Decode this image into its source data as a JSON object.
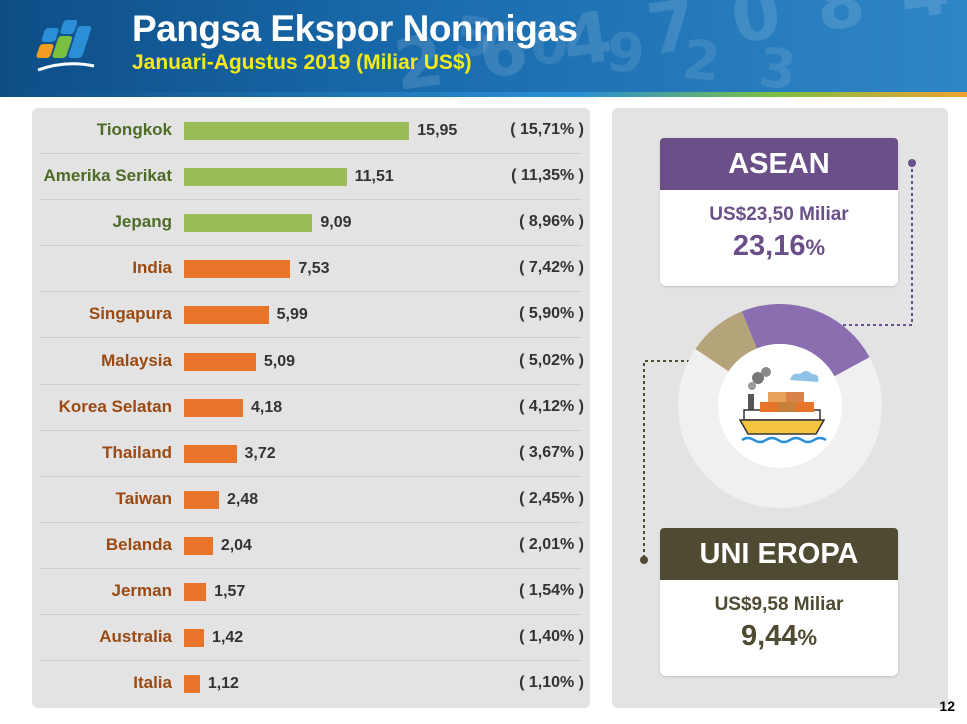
{
  "header": {
    "title": "Pangsa Ekspor Nonmigas",
    "subtitle": "Januari-Agustus 2019 (Miliar US$)"
  },
  "chart_data": {
    "type": "bar",
    "orientation": "horizontal",
    "categories": [
      "Tiongkok",
      "Amerika Serikat",
      "Jepang",
      "India",
      "Singapura",
      "Malaysia",
      "Korea Selatan",
      "Thailand",
      "Taiwan",
      "Belanda",
      "Jerman",
      "Australia",
      "Italia"
    ],
    "values": [
      15.95,
      11.51,
      9.09,
      7.53,
      5.99,
      5.09,
      4.18,
      3.72,
      2.48,
      2.04,
      1.57,
      1.42,
      1.12
    ],
    "value_labels": [
      "15,95",
      "11,51",
      "9,09",
      "7,53",
      "5,99",
      "5,09",
      "4,18",
      "3,72",
      "2,48",
      "2,04",
      "1,57",
      "1,42",
      "1,12"
    ],
    "share_labels": [
      "( 15,71% )",
      "( 11,35% )",
      "( 8,96% )",
      "( 7,42% )",
      "( 5,90% )",
      "( 5,02% )",
      "( 4,12% )",
      "( 3,67% )",
      "( 2,45% )",
      "( 2,01% )",
      "( 1,54% )",
      "( 1,40% )",
      "( 1,10% )"
    ],
    "bar_colors": [
      "#9cbb59",
      "#9cbb59",
      "#9cbb59",
      "#e8742a",
      "#e8742a",
      "#e8742a",
      "#e8742a",
      "#e8742a",
      "#e8742a",
      "#e8742a",
      "#e8742a",
      "#e8742a",
      "#e8742a"
    ],
    "label_colors": [
      "#4e6b27",
      "#4e6b27",
      "#4e6b27",
      "#9a4a12",
      "#9a4a12",
      "#9a4a12",
      "#9a4a12",
      "#9a4a12",
      "#9a4a12",
      "#9a4a12",
      "#9a4a12",
      "#9a4a12",
      "#9a4a12"
    ],
    "xlim": [
      0,
      16
    ]
  },
  "regions": {
    "asean": {
      "title": "ASEAN",
      "amount": "US$23,50 Miliar",
      "share": "23,16",
      "percent_sign": "%",
      "share_value": 23.16,
      "color": "#6a4f88"
    },
    "eu": {
      "title": "UNI EROPA",
      "amount": "US$9,58 Miliar",
      "share": "9,44",
      "percent_sign": "%",
      "share_value": 9.44,
      "color": "#4f4a32"
    }
  },
  "donut": {
    "asean_color": "#8a6eb0",
    "eu_color": "#b5a47a",
    "rest_color": "#f0f0f0"
  },
  "page_number": "12"
}
